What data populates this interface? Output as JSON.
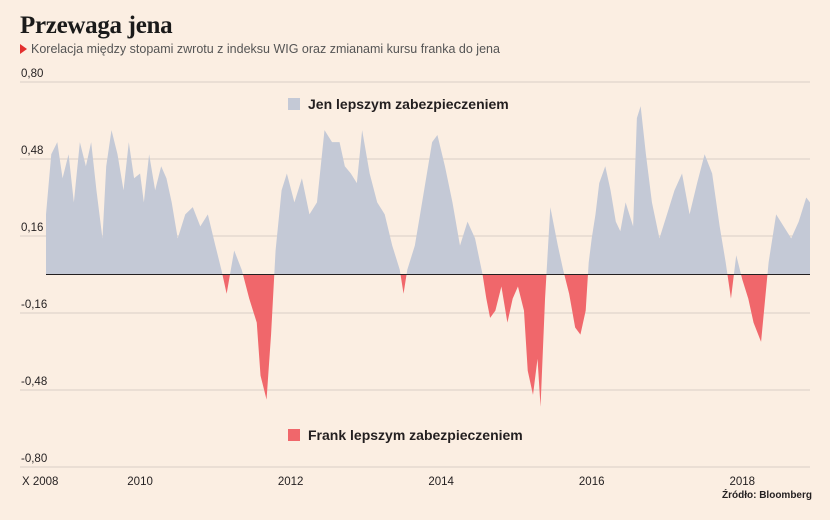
{
  "title": "Przewaga jena",
  "subtitle": "Korelacja między stopami zwrotu z indeksu WIG oraz zmianami kursu franka do jena",
  "source": "Źródło: Bloomberg",
  "colors": {
    "positive": "#c4c9d6",
    "negative": "#f0676b",
    "accent": "#e3302f",
    "background": "#fbeee2"
  },
  "chart_data": {
    "type": "area",
    "title": "Przewaga jena",
    "ylim": [
      -0.8,
      0.8
    ],
    "xlim": [
      2008.75,
      2018.9
    ],
    "y_ticks": [
      0.8,
      0.48,
      0.16,
      -0.16,
      -0.48,
      -0.8
    ],
    "y_tick_labels": [
      "0,80",
      "0,48",
      "0,16",
      "-0,16",
      "-0,48",
      "-0,80"
    ],
    "x_ticks": [
      2008.75,
      2010,
      2012,
      2014,
      2016,
      2018
    ],
    "x_tick_labels": [
      "X 2008",
      "2010",
      "2012",
      "2014",
      "2016",
      "2018"
    ],
    "grid": "horizontal",
    "legend": [
      {
        "label": "Jen lepszym zabezpieczeniem",
        "color": "#c4c9d6"
      },
      {
        "label": "Frank lepszym zabezpieczeniem",
        "color": "#f0676b"
      }
    ],
    "series": [
      {
        "x": [
          2008.75,
          2008.82,
          2008.9,
          2008.97,
          2009.05,
          2009.12,
          2009.2,
          2009.28,
          2009.35,
          2009.42,
          2009.5,
          2009.55,
          2009.62,
          2009.7,
          2009.78,
          2009.85,
          2009.92,
          2010.0,
          2010.05,
          2010.12,
          2010.2,
          2010.28,
          2010.35,
          2010.42,
          2010.5,
          2010.6,
          2010.7,
          2010.8,
          2010.9,
          2011.0,
          2011.08,
          2011.15,
          2011.25,
          2011.35,
          2011.45,
          2011.55,
          2011.6,
          2011.68,
          2011.74,
          2011.8,
          2011.88,
          2011.95,
          2012.05,
          2012.15,
          2012.25,
          2012.35,
          2012.45,
          2012.55,
          2012.65,
          2012.72,
          2012.8,
          2012.88,
          2012.95,
          2013.05,
          2013.15,
          2013.25,
          2013.35,
          2013.45,
          2013.5,
          2013.55,
          2013.65,
          2013.72,
          2013.8,
          2013.88,
          2013.95,
          2014.05,
          2014.15,
          2014.25,
          2014.35,
          2014.45,
          2014.55,
          2014.6,
          2014.65,
          2014.72,
          2014.8,
          2014.88,
          2014.95,
          2015.02,
          2015.1,
          2015.15,
          2015.22,
          2015.28,
          2015.32,
          2015.38,
          2015.45,
          2015.55,
          2015.62,
          2015.7,
          2015.78,
          2015.85,
          2015.92,
          2015.96,
          2016.0,
          2016.05,
          2016.1,
          2016.18,
          2016.25,
          2016.32,
          2016.38,
          2016.45,
          2016.5,
          2016.55,
          2016.6,
          2016.65,
          2016.72,
          2016.8,
          2016.9,
          2017.0,
          2017.1,
          2017.2,
          2017.3,
          2017.4,
          2017.5,
          2017.6,
          2017.7,
          2017.78,
          2017.85,
          2017.92,
          2018.0,
          2018.08,
          2018.15,
          2018.25,
          2018.35,
          2018.45,
          2018.55,
          2018.65,
          2018.75,
          2018.85,
          2018.9
        ],
        "y": [
          0.25,
          0.5,
          0.55,
          0.4,
          0.5,
          0.3,
          0.55,
          0.45,
          0.55,
          0.35,
          0.15,
          0.45,
          0.6,
          0.5,
          0.35,
          0.55,
          0.4,
          0.42,
          0.3,
          0.5,
          0.35,
          0.45,
          0.4,
          0.3,
          0.15,
          0.25,
          0.28,
          0.2,
          0.25,
          0.12,
          0.02,
          -0.08,
          0.1,
          0.02,
          -0.1,
          -0.2,
          -0.42,
          -0.52,
          -0.25,
          0.1,
          0.35,
          0.42,
          0.3,
          0.4,
          0.25,
          0.3,
          0.6,
          0.55,
          0.55,
          0.45,
          0.42,
          0.38,
          0.6,
          0.42,
          0.3,
          0.25,
          0.12,
          0.02,
          -0.08,
          0.02,
          0.12,
          0.25,
          0.4,
          0.55,
          0.58,
          0.45,
          0.3,
          0.12,
          0.22,
          0.15,
          0.0,
          -0.1,
          -0.18,
          -0.15,
          -0.05,
          -0.2,
          -0.1,
          -0.05,
          -0.15,
          -0.4,
          -0.5,
          -0.35,
          -0.55,
          -0.1,
          0.28,
          0.12,
          0.02,
          -0.08,
          -0.22,
          -0.25,
          -0.15,
          0.05,
          0.15,
          0.25,
          0.38,
          0.45,
          0.35,
          0.22,
          0.18,
          0.3,
          0.25,
          0.2,
          0.65,
          0.7,
          0.5,
          0.3,
          0.15,
          0.25,
          0.35,
          0.42,
          0.25,
          0.38,
          0.5,
          0.42,
          0.2,
          0.05,
          -0.1,
          0.08,
          -0.02,
          -0.1,
          -0.2,
          -0.28,
          0.05,
          0.25,
          0.2,
          0.15,
          0.22,
          0.32,
          0.3
        ]
      }
    ]
  }
}
